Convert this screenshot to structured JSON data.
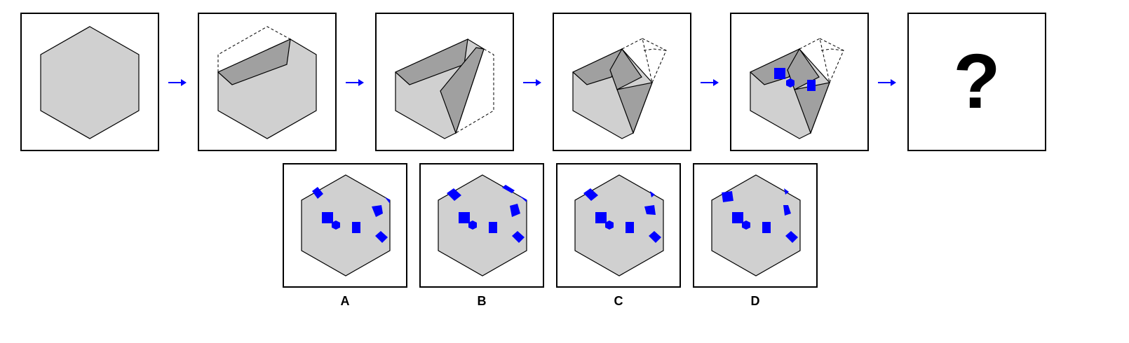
{
  "question_mark": "?",
  "colors": {
    "paper": "#d0d0d0",
    "fold": "#a0a0a0",
    "mark": "#0000ff",
    "outline": "#000000",
    "arrow": "#0000ff"
  },
  "options": [
    {
      "label": "A"
    },
    {
      "label": "B"
    },
    {
      "label": "C"
    },
    {
      "label": "D"
    }
  ]
}
